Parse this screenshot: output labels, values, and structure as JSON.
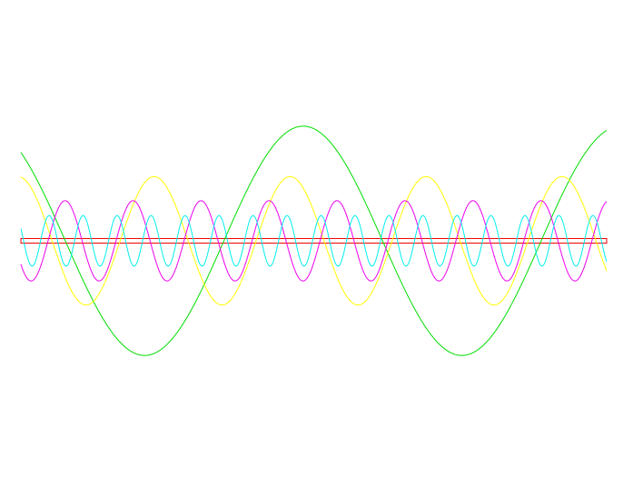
{
  "chart_data": {
    "type": "line",
    "title": "",
    "xlabel": "",
    "ylabel": "",
    "grid": false,
    "legend": "none",
    "xlim": [
      0,
      5.17
    ],
    "ylim": [
      -1.3,
      1.3
    ],
    "series": [
      {
        "kind": "sine",
        "amplitude": 1.0,
        "period": 2.8,
        "phase": 0.36,
        "color": "#00dd00"
      },
      {
        "kind": "sine",
        "amplitude": 0.56,
        "period": 1.2,
        "phase": 0.27,
        "color": "#ffff00"
      },
      {
        "kind": "sine",
        "amplitude": 0.35,
        "period": 0.6,
        "phase": 0.6,
        "color": "#ee00ee"
      },
      {
        "kind": "sine",
        "amplitude": 0.22,
        "period": 0.3,
        "phase": 0.42,
        "color": "#00eeee"
      }
    ],
    "band": {
      "y_min": -0.02,
      "y_max": 0.02,
      "color": "#ee0000"
    }
  }
}
